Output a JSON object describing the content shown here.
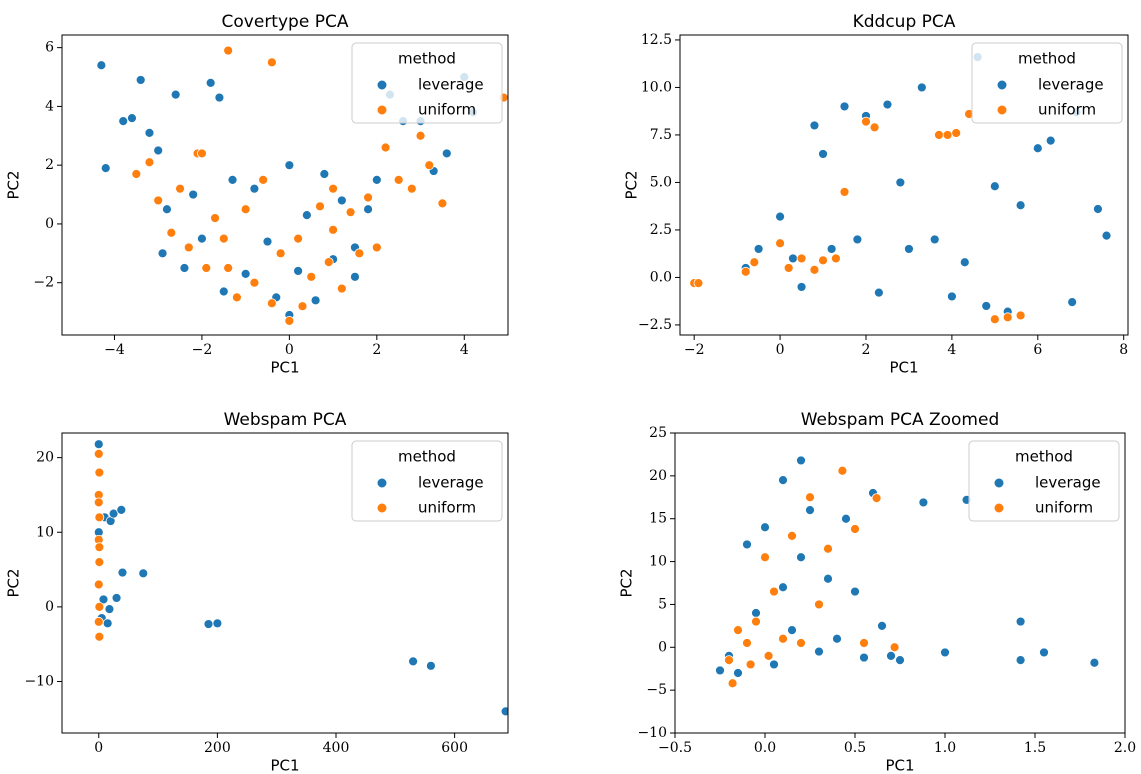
{
  "chart_data": [
    {
      "type": "scatter",
      "title": "Covertype PCA",
      "x_label": "PC1",
      "y_label": "PC2",
      "legend_title": "method",
      "legend": "upper right",
      "grid": false,
      "xlim": [
        -5.2,
        5.0
      ],
      "ylim": [
        -3.78,
        6.43
      ],
      "xticks": [
        {
          "value": -4,
          "label": "−4"
        },
        {
          "value": -2,
          "label": "−2"
        },
        0,
        2,
        4
      ],
      "yticks": [
        {
          "value": -2,
          "label": "−2"
        },
        0,
        2,
        4,
        6
      ],
      "series": [
        {
          "name": "leverage",
          "color": "#1f77b4",
          "x": [
            -4.3,
            -4.2,
            -3.8,
            -3.6,
            -3.4,
            -3.2,
            -3.0,
            -2.8,
            -2.6,
            -2.4,
            -2.2,
            -2.0,
            -1.8,
            -1.6,
            -1.5,
            -1.3,
            -1.0,
            -0.8,
            -0.5,
            -0.3,
            0,
            0.2,
            0.4,
            0.6,
            0.8,
            1.0,
            1.2,
            1.5,
            1.8,
            2.0,
            2.3,
            2.6,
            3.0,
            3.3,
            3.6,
            4.0,
            4.2,
            0.0,
            -2.9,
            1.5
          ],
          "y": [
            5.4,
            1.9,
            3.5,
            3.6,
            4.9,
            3.1,
            2.5,
            0.5,
            4.4,
            -1.5,
            1.0,
            -0.5,
            4.8,
            4.3,
            -2.3,
            1.5,
            -1.7,
            1.2,
            -0.6,
            -2.5,
            -3.1,
            -1.6,
            0.3,
            -2.6,
            1.7,
            -1.2,
            0.8,
            -1.8,
            0.5,
            1.5,
            4.4,
            3.5,
            3.5,
            1.8,
            2.4,
            5.0,
            3.8,
            2.0,
            -1.0,
            -0.8
          ]
        },
        {
          "name": "uniform",
          "color": "#ff7f0e",
          "x": [
            -3.5,
            -3.2,
            -3.0,
            -2.7,
            -2.5,
            -2.3,
            -2.1,
            -1.9,
            -1.7,
            -1.5,
            -1.4,
            -1.2,
            -1.0,
            -0.8,
            -0.6,
            -0.4,
            -0.2,
            0,
            0.2,
            0.3,
            0.5,
            0.7,
            0.9,
            1.0,
            1.2,
            1.4,
            1.6,
            1.8,
            2.0,
            2.2,
            2.5,
            2.8,
            3.0,
            3.2,
            3.5,
            4.9,
            -1.4,
            -0.4,
            1.0,
            -2.0
          ],
          "y": [
            1.7,
            2.1,
            0.8,
            -0.3,
            1.2,
            -0.8,
            2.4,
            -1.5,
            0.2,
            -0.5,
            5.9,
            -2.5,
            0.5,
            -2.0,
            1.5,
            5.5,
            -1.0,
            -3.3,
            -0.5,
            -2.8,
            -1.8,
            0.6,
            -1.3,
            -0.2,
            -2.2,
            0.4,
            -1.0,
            0.9,
            -0.8,
            2.6,
            1.5,
            1.2,
            3.0,
            2.0,
            0.7,
            4.3,
            -1.5,
            -2.7,
            1.2,
            2.4
          ]
        }
      ]
    },
    {
      "type": "scatter",
      "title": "Kddcup PCA",
      "x_label": "PC1",
      "y_label": "PC2",
      "legend_title": "method",
      "legend": "upper right",
      "grid": false,
      "xlim": [
        -2.33,
        8.1
      ],
      "ylim": [
        -3.03,
        12.76
      ],
      "xticks": [
        {
          "value": -2,
          "label": "−2"
        },
        0,
        2,
        4,
        6,
        8
      ],
      "yticks": [
        {
          "value": -2.5,
          "label": "−2.5"
        },
        {
          "value": 0,
          "label": "0.0"
        },
        2.5,
        {
          "value": 5,
          "label": "5.0"
        },
        7.5,
        {
          "value": 10,
          "label": "10.0"
        },
        12.5
      ],
      "series": [
        {
          "name": "leverage",
          "color": "#1f77b4",
          "x": [
            -0.8,
            -0.5,
            0,
            0.3,
            0.5,
            0.8,
            1.0,
            1.2,
            1.5,
            1.8,
            2.0,
            2.3,
            2.5,
            2.8,
            3.0,
            3.3,
            3.6,
            4.0,
            4.3,
            4.6,
            4.8,
            5.0,
            5.3,
            5.6,
            6.0,
            6.3,
            6.8,
            6.9,
            7.4,
            7.6
          ],
          "y": [
            0.5,
            1.5,
            3.2,
            1.0,
            -0.5,
            8.0,
            6.5,
            1.5,
            9.0,
            2.0,
            8.5,
            -0.8,
            9.1,
            5.0,
            1.5,
            10.0,
            2.0,
            -1.0,
            0.8,
            11.6,
            -1.5,
            4.8,
            -1.8,
            3.8,
            6.8,
            7.2,
            -1.3,
            8.7,
            3.6,
            2.2
          ]
        },
        {
          "name": "uniform",
          "color": "#ff7f0e",
          "x": [
            -2.0,
            -1.9,
            -0.8,
            -0.6,
            0,
            0.2,
            0.5,
            0.8,
            1.0,
            1.3,
            1.5,
            2.0,
            2.2,
            3.7,
            3.9,
            4.1,
            4.4,
            5.0,
            5.3,
            5.6
          ],
          "y": [
            -0.3,
            -0.3,
            0.3,
            0.8,
            1.8,
            0.5,
            1.0,
            0.4,
            0.9,
            1.0,
            4.5,
            8.2,
            7.9,
            7.5,
            7.5,
            7.6,
            8.6,
            -2.2,
            -2.1,
            -2.0
          ]
        }
      ]
    },
    {
      "type": "scatter",
      "title": "Webspam PCA",
      "x_label": "PC1",
      "y_label": "PC2",
      "legend_title": "method",
      "legend": "upper right",
      "grid": false,
      "xlim": [
        -62,
        690
      ],
      "ylim": [
        -16.9,
        23.3
      ],
      "xticks": [
        0,
        200,
        400,
        600
      ],
      "yticks": [
        {
          "value": -10,
          "label": "−10"
        },
        0,
        10,
        20
      ],
      "series": [
        {
          "name": "leverage",
          "color": "#1f77b4",
          "x": [
            0,
            0,
            0,
            2,
            5,
            8,
            10,
            15,
            18,
            20,
            25,
            30,
            38,
            40,
            75,
            185,
            200,
            530,
            560,
            686
          ],
          "y": [
            21.8,
            -4,
            10,
            6,
            -1.5,
            1,
            12,
            -2.2,
            -0.3,
            11.5,
            12.5,
            1.2,
            13,
            4.6,
            4.5,
            -2.3,
            -2.2,
            -7.3,
            -7.9,
            -14
          ]
        },
        {
          "name": "uniform",
          "color": "#ff7f0e",
          "x": [
            0,
            1,
            0,
            1,
            0,
            1,
            0,
            1,
            0,
            1,
            0,
            1
          ],
          "y": [
            20.5,
            18,
            15,
            12,
            9,
            6,
            3,
            0,
            -2,
            -4,
            14,
            8
          ]
        }
      ]
    },
    {
      "type": "scatter",
      "title": "Webspam PCA Zoomed",
      "x_label": "PC1",
      "y_label": "PC2",
      "legend_title": "method",
      "legend": "upper right",
      "grid": false,
      "xlim": [
        -0.5,
        2.0
      ],
      "ylim": [
        -10,
        25
      ],
      "xticks": [
        {
          "value": -0.5,
          "label": "−0.5"
        },
        {
          "value": 0,
          "label": "0.0"
        },
        0.5,
        {
          "value": 1,
          "label": "1.0"
        },
        1.5,
        {
          "value": 2,
          "label": "2.0"
        }
      ],
      "yticks": [
        {
          "value": -10,
          "label": "−10"
        },
        {
          "value": -5,
          "label": "−5"
        },
        0,
        5,
        10,
        15,
        20,
        25
      ],
      "series": [
        {
          "name": "leverage",
          "color": "#1f77b4",
          "x": [
            -0.25,
            -0.2,
            -0.15,
            -0.1,
            -0.05,
            0,
            0.05,
            0.1,
            0.15,
            0.2,
            0.25,
            0.3,
            0.35,
            0.4,
            0.45,
            0.5,
            0.55,
            0.6,
            0.65,
            0.7,
            0.75,
            0.88,
            1.0,
            1.12,
            1.42,
            1.42,
            1.55,
            1.83,
            0.1,
            0.2
          ],
          "y": [
            -2.7,
            -1.0,
            -3.0,
            12.0,
            4.0,
            14.0,
            -2.0,
            19.5,
            2.0,
            21.8,
            16.0,
            -0.5,
            8.0,
            1.0,
            15.0,
            6.5,
            -1.2,
            18.0,
            2.5,
            -1.0,
            -1.5,
            16.9,
            -0.6,
            17.2,
            3.0,
            -1.5,
            -0.6,
            -1.8,
            7.0,
            10.5
          ]
        },
        {
          "name": "uniform",
          "color": "#ff7f0e",
          "x": [
            -0.2,
            -0.18,
            -0.15,
            -0.1,
            -0.08,
            -0.05,
            0,
            0.02,
            0.05,
            0.1,
            0.15,
            0.2,
            0.25,
            0.3,
            0.35,
            0.43,
            0.5,
            0.55,
            0.62,
            0.72
          ],
          "y": [
            -1.5,
            -4.2,
            2.0,
            0.5,
            -2.0,
            3.0,
            10.5,
            -1.0,
            6.5,
            1.0,
            13.0,
            0.5,
            17.5,
            5.0,
            11.5,
            20.6,
            13.8,
            0.5,
            17.4,
            0.0
          ]
        }
      ]
    }
  ]
}
